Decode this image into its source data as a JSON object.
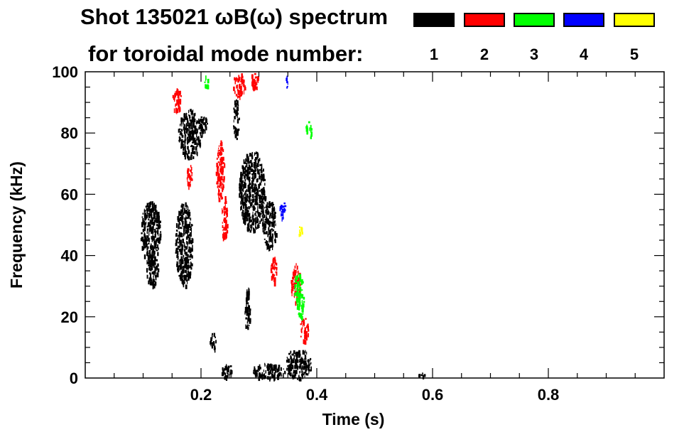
{
  "chart_data": {
    "type": "heatmap",
    "title_line1": "Shot 135021 ωB(ω) spectrum",
    "title_line2": "for toroidal mode number:",
    "xlabel": "Time (s)",
    "ylabel": "Frequency (kHz)",
    "xlim": [
      0.0,
      1.0
    ],
    "ylim": [
      0,
      100
    ],
    "x_ticks": [
      {
        "value": 0.2,
        "label": "0.2"
      },
      {
        "value": 0.4,
        "label": "0.4"
      },
      {
        "value": 0.6,
        "label": "0.6"
      },
      {
        "value": 0.8,
        "label": "0.8"
      }
    ],
    "y_ticks": [
      {
        "value": 0,
        "label": "0"
      },
      {
        "value": 20,
        "label": "20"
      },
      {
        "value": 40,
        "label": "40"
      },
      {
        "value": 60,
        "label": "60"
      },
      {
        "value": 80,
        "label": "80"
      },
      {
        "value": 100,
        "label": "100"
      }
    ],
    "legend": [
      {
        "mode": "1",
        "color": "#000000"
      },
      {
        "mode": "2",
        "color": "#ff0000"
      },
      {
        "mode": "3",
        "color": "#00ff00"
      },
      {
        "mode": "4",
        "color": "#0000ff"
      },
      {
        "mode": "5",
        "color": "#ffff00"
      }
    ],
    "regions": [
      {
        "mode": 1,
        "t0": 0.095,
        "t1": 0.13,
        "f0": 38,
        "f1": 58
      },
      {
        "mode": 1,
        "t0": 0.105,
        "t1": 0.125,
        "f0": 30,
        "f1": 42
      },
      {
        "mode": 1,
        "t0": 0.155,
        "t1": 0.185,
        "f0": 30,
        "f1": 58
      },
      {
        "mode": 1,
        "t0": 0.16,
        "t1": 0.2,
        "f0": 72,
        "f1": 88
      },
      {
        "mode": 1,
        "t0": 0.195,
        "t1": 0.21,
        "f0": 80,
        "f1": 86
      },
      {
        "mode": 1,
        "t0": 0.265,
        "t1": 0.31,
        "f0": 48,
        "f1": 75
      },
      {
        "mode": 1,
        "t0": 0.305,
        "t1": 0.33,
        "f0": 42,
        "f1": 58
      },
      {
        "mode": 1,
        "t0": 0.255,
        "t1": 0.265,
        "f0": 78,
        "f1": 92
      },
      {
        "mode": 1,
        "t0": 0.235,
        "t1": 0.255,
        "f0": 0,
        "f1": 5
      },
      {
        "mode": 1,
        "t0": 0.285,
        "t1": 0.345,
        "f0": 0,
        "f1": 5
      },
      {
        "mode": 1,
        "t0": 0.345,
        "t1": 0.39,
        "f0": 0,
        "f1": 10
      },
      {
        "mode": 1,
        "t0": 0.215,
        "t1": 0.225,
        "f0": 9,
        "f1": 15
      },
      {
        "mode": 1,
        "t0": 0.275,
        "t1": 0.285,
        "f0": 15,
        "f1": 30
      },
      {
        "mode": 1,
        "t0": 0.575,
        "t1": 0.585,
        "f0": 0,
        "f1": 2
      },
      {
        "mode": 2,
        "t0": 0.15,
        "t1": 0.165,
        "f0": 87,
        "f1": 95
      },
      {
        "mode": 2,
        "t0": 0.175,
        "t1": 0.185,
        "f0": 62,
        "f1": 70
      },
      {
        "mode": 2,
        "t0": 0.225,
        "t1": 0.24,
        "f0": 58,
        "f1": 78
      },
      {
        "mode": 2,
        "t0": 0.235,
        "t1": 0.245,
        "f0": 45,
        "f1": 60
      },
      {
        "mode": 2,
        "t0": 0.255,
        "t1": 0.275,
        "f0": 92,
        "f1": 100
      },
      {
        "mode": 2,
        "t0": 0.285,
        "t1": 0.3,
        "f0": 95,
        "f1": 100
      },
      {
        "mode": 2,
        "t0": 0.355,
        "t1": 0.37,
        "f0": 25,
        "f1": 38
      },
      {
        "mode": 2,
        "t0": 0.37,
        "t1": 0.385,
        "f0": 12,
        "f1": 20
      },
      {
        "mode": 2,
        "t0": 0.32,
        "t1": 0.33,
        "f0": 30,
        "f1": 40
      },
      {
        "mode": 3,
        "t0": 0.36,
        "t1": 0.375,
        "f0": 25,
        "f1": 35
      },
      {
        "mode": 3,
        "t0": 0.365,
        "t1": 0.378,
        "f0": 20,
        "f1": 28
      },
      {
        "mode": 3,
        "t0": 0.38,
        "t1": 0.39,
        "f0": 78,
        "f1": 84
      },
      {
        "mode": 3,
        "t0": 0.205,
        "t1": 0.212,
        "f0": 95,
        "f1": 99
      },
      {
        "mode": 4,
        "t0": 0.335,
        "t1": 0.345,
        "f0": 52,
        "f1": 58
      },
      {
        "mode": 4,
        "t0": 0.345,
        "t1": 0.35,
        "f0": 95,
        "f1": 99
      },
      {
        "mode": 5,
        "t0": 0.368,
        "t1": 0.374,
        "f0": 46,
        "f1": 50
      }
    ]
  }
}
